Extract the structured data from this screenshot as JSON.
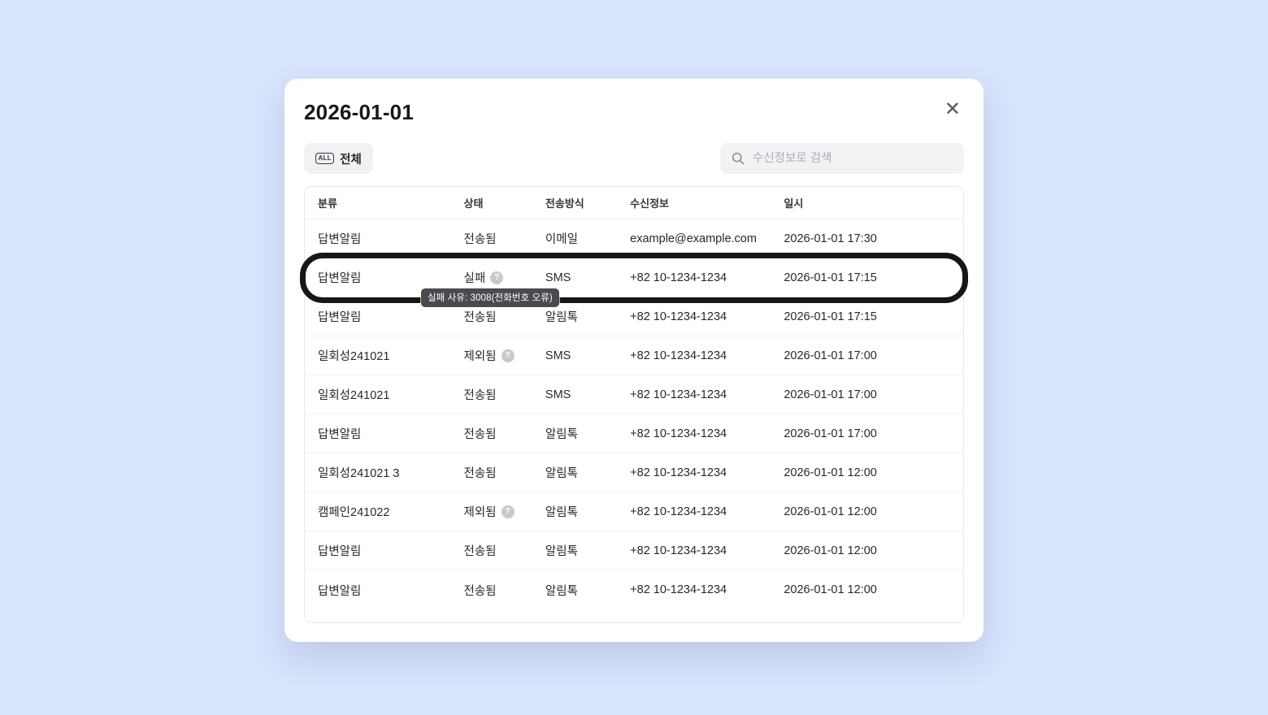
{
  "colors": {
    "backdrop": "#d8e3fc",
    "modal_bg": "#ffffff",
    "chip_bg": "#f1f2f4",
    "annotation": "#161616",
    "tooltip_bg": "#494b4e",
    "help_icon_bg": "#c6c9ce"
  },
  "modal": {
    "title": "2026-01-01",
    "close_icon": "✕",
    "filter": {
      "badge": "ALL",
      "label": "전체"
    },
    "search": {
      "placeholder": "수신정보로 검색",
      "icon": "magnifier"
    },
    "tooltip": {
      "text": "실패 사유: 3008(전화번호 오류)"
    },
    "table": {
      "columns": [
        "분류",
        "상태",
        "전송방식",
        "수신정보",
        "일시"
      ],
      "help_glyph": "?",
      "rows": [
        {
          "category": "답변알림",
          "status": "전송됨",
          "has_help": false,
          "method": "이메일",
          "recipient": "example@example.com",
          "datetime": "2026-01-01 17:30",
          "highlighted": false
        },
        {
          "category": "답변알림",
          "status": "실패",
          "has_help": true,
          "method": "SMS",
          "recipient": "+82 10-1234-1234",
          "datetime": "2026-01-01 17:15",
          "highlighted": true
        },
        {
          "category": "답변알림",
          "status": "전송됨",
          "has_help": false,
          "method": "알림톡",
          "recipient": "+82 10-1234-1234",
          "datetime": "2026-01-01 17:15",
          "highlighted": false
        },
        {
          "category": "일회성241021",
          "status": "제외됨",
          "has_help": true,
          "method": "SMS",
          "recipient": "+82 10-1234-1234",
          "datetime": "2026-01-01 17:00",
          "highlighted": false
        },
        {
          "category": "일회성241021",
          "status": "전송됨",
          "has_help": false,
          "method": "SMS",
          "recipient": "+82 10-1234-1234",
          "datetime": "2026-01-01 17:00",
          "highlighted": false
        },
        {
          "category": "답변알림",
          "status": "전송됨",
          "has_help": false,
          "method": "알림톡",
          "recipient": "+82 10-1234-1234",
          "datetime": "2026-01-01 17:00",
          "highlighted": false
        },
        {
          "category": "일회성241021 3",
          "status": "전송됨",
          "has_help": false,
          "method": "알림톡",
          "recipient": "+82 10-1234-1234",
          "datetime": "2026-01-01 12:00",
          "highlighted": false
        },
        {
          "category": "캠페인241022",
          "status": "제외됨",
          "has_help": true,
          "method": "알림톡",
          "recipient": "+82 10-1234-1234",
          "datetime": "2026-01-01 12:00",
          "highlighted": false
        },
        {
          "category": "답변알림",
          "status": "전송됨",
          "has_help": false,
          "method": "알림톡",
          "recipient": "+82 10-1234-1234",
          "datetime": "2026-01-01 12:00",
          "highlighted": false
        },
        {
          "category": "답변알림",
          "status": "전송됨",
          "has_help": false,
          "method": "알림톡",
          "recipient": "+82 10-1234-1234",
          "datetime": "2026-01-01 12:00",
          "highlighted": false
        }
      ]
    }
  }
}
